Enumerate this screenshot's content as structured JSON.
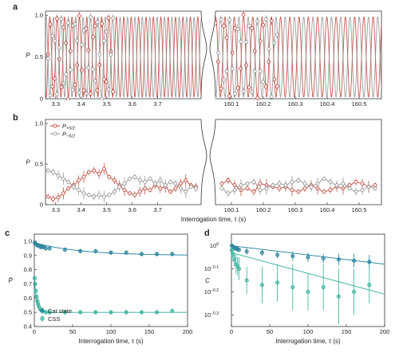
{
  "colors": {
    "red": "#c0392b",
    "gray": "#8c8c8c",
    "dark_teal": "#1f7f9a",
    "light_teal": "#2fb09a"
  },
  "chart_data": [
    {
      "panel": "a",
      "type": "line",
      "ylabel": "P",
      "ylim": [
        0,
        1.05
      ],
      "y_ticks": [
        "0",
        "0.5",
        "1.0"
      ],
      "y_tick_values": [
        0,
        0.5,
        1.0
      ],
      "left_x_ticks": [
        "3.3",
        "3.4",
        "3.5",
        "3.6",
        "3.7"
      ],
      "right_x_ticks": [
        "160.1",
        "160.2",
        "160.3",
        "160.4",
        "160.5"
      ],
      "x_tick_values_left": [
        3.3,
        3.4,
        3.5,
        3.6,
        3.7
      ],
      "x_tick_values_right": [
        160.1,
        160.2,
        160.3,
        160.4,
        160.5
      ],
      "xlim_left": [
        3.26,
        3.87
      ],
      "xlim_right": [
        160.05,
        160.57
      ],
      "segment_break": "axis break between 3.87 s and 160.05 s",
      "series": [
        {
          "color_key": "red",
          "fringe_period_s": 0.029,
          "phase": 0.0,
          "data_left_x": [
            3.27,
            3.53
          ],
          "data_right_x": [
            160.05,
            160.25
          ]
        },
        {
          "color_key": "gray",
          "fringe_period_s": 0.029,
          "phase": 0.5,
          "data_left_x": [
            3.27,
            3.53
          ],
          "data_right_x": [
            160.05,
            160.25
          ]
        }
      ]
    },
    {
      "panel": "b",
      "type": "line",
      "ylabel": "P",
      "xlabel": "Interrogation time, τ (s)",
      "ylim": [
        0,
        1.05
      ],
      "y_ticks": [
        "0",
        "0.5",
        "1.0"
      ],
      "y_tick_values": [
        0,
        0.5,
        1.0
      ],
      "left_x_ticks": [
        "3.3",
        "3.4",
        "3.5",
        "3.6",
        "3.7"
      ],
      "right_x_ticks": [
        "160.1",
        "160.2",
        "160.3",
        "160.4",
        "160.5"
      ],
      "x_tick_values_left": [
        3.3,
        3.4,
        3.5,
        3.6,
        3.7
      ],
      "x_tick_values_right": [
        160.1,
        160.2,
        160.3,
        160.4,
        160.5
      ],
      "xlim_left": [
        3.26,
        3.87
      ],
      "xlim_right": [
        160.05,
        160.57
      ],
      "legend": [
        "P",
        "P"
      ],
      "legend_subs": [
        "+5/2",
        "−5/2"
      ],
      "series": [
        {
          "color_key": "red",
          "left_x": [
            3.27,
            3.29,
            3.31,
            3.33,
            3.35,
            3.37,
            3.39,
            3.41,
            3.43,
            3.45,
            3.47,
            3.49,
            3.51,
            3.53,
            3.55,
            3.57,
            3.59,
            3.61,
            3.63,
            3.65,
            3.67,
            3.69,
            3.71,
            3.73,
            3.75,
            3.77,
            3.79,
            3.81,
            3.83,
            3.85
          ],
          "left_y": [
            0.1,
            0.07,
            0.09,
            0.14,
            0.2,
            0.24,
            0.3,
            0.34,
            0.4,
            0.42,
            0.38,
            0.44,
            0.34,
            0.3,
            0.24,
            0.18,
            0.14,
            0.12,
            0.16,
            0.2,
            0.18,
            0.24,
            0.2,
            0.22,
            0.16,
            0.2,
            0.26,
            0.3,
            0.24,
            0.22
          ],
          "right_x": [
            160.07,
            160.09,
            160.11,
            160.13,
            160.15,
            160.17,
            160.19,
            160.21,
            160.23,
            160.25,
            160.27,
            160.29,
            160.31,
            160.33,
            160.35,
            160.37,
            160.39,
            160.41,
            160.43,
            160.45,
            160.47,
            160.49,
            160.51,
            160.53,
            160.55
          ],
          "right_y": [
            0.26,
            0.3,
            0.24,
            0.18,
            0.2,
            0.16,
            0.26,
            0.24,
            0.22,
            0.2,
            0.22,
            0.18,
            0.16,
            0.2,
            0.24,
            0.2,
            0.16,
            0.18,
            0.22,
            0.2,
            0.24,
            0.28,
            0.26,
            0.22,
            0.24
          ]
        },
        {
          "color_key": "gray",
          "left_x": [
            3.27,
            3.29,
            3.31,
            3.33,
            3.35,
            3.37,
            3.39,
            3.41,
            3.43,
            3.45,
            3.47,
            3.49,
            3.51,
            3.53,
            3.55,
            3.57,
            3.59,
            3.61,
            3.63,
            3.65,
            3.67,
            3.69,
            3.71,
            3.73,
            3.75,
            3.77,
            3.79,
            3.81,
            3.83,
            3.85
          ],
          "left_y": [
            0.42,
            0.4,
            0.36,
            0.32,
            0.28,
            0.22,
            0.18,
            0.14,
            0.12,
            0.1,
            0.12,
            0.1,
            0.12,
            0.16,
            0.22,
            0.26,
            0.32,
            0.34,
            0.3,
            0.28,
            0.32,
            0.26,
            0.3,
            0.24,
            0.28,
            0.26,
            0.2,
            0.16,
            0.22,
            0.2
          ],
          "right_x": [
            160.07,
            160.09,
            160.11,
            160.13,
            160.15,
            160.17,
            160.19,
            160.21,
            160.23,
            160.25,
            160.27,
            160.29,
            160.31,
            160.33,
            160.35,
            160.37,
            160.39,
            160.41,
            160.43,
            160.45,
            160.47,
            160.49,
            160.51,
            160.53,
            160.55
          ],
          "right_y": [
            0.2,
            0.14,
            0.18,
            0.24,
            0.26,
            0.28,
            0.18,
            0.2,
            0.24,
            0.26,
            0.24,
            0.28,
            0.3,
            0.26,
            0.22,
            0.26,
            0.32,
            0.28,
            0.24,
            0.26,
            0.2,
            0.16,
            0.18,
            0.22,
            0.2
          ]
        }
      ]
    },
    {
      "panel": "c",
      "type": "scatter",
      "ylabel": "P̄",
      "xlabel": "Interrogation time, τ (s)",
      "xlim": [
        0,
        200
      ],
      "ylim": [
        0.4,
        1.05
      ],
      "x_ticks": [
        "0",
        "50",
        "100",
        "150",
        "200"
      ],
      "x_tick_values": [
        0,
        50,
        100,
        150,
        200
      ],
      "y_ticks": [
        "0.4",
        "0.5",
        "0.6",
        "0.7",
        "0.8",
        "0.9",
        "1.0"
      ],
      "y_tick_values": [
        0.4,
        0.5,
        0.6,
        0.7,
        0.8,
        0.9,
        1.0
      ],
      "legend_position": "bottom-left",
      "series": [
        {
          "name": "Cat state",
          "color_key": "dark_teal",
          "x": [
            0.5,
            2,
            4,
            6,
            8,
            10,
            12,
            15,
            20,
            40,
            60,
            80,
            100,
            120,
            140,
            160,
            180
          ],
          "y": [
            0.99,
            0.98,
            0.97,
            0.97,
            0.96,
            0.96,
            0.96,
            0.95,
            0.95,
            0.94,
            0.93,
            0.93,
            0.92,
            0.92,
            0.91,
            0.91,
            0.91
          ]
        },
        {
          "name": "CSS",
          "color_key": "light_teal",
          "x": [
            0.5,
            1,
            2,
            3,
            4,
            5,
            6,
            8,
            10,
            15,
            20,
            40,
            60,
            80,
            100,
            120,
            140,
            160,
            180
          ],
          "y": [
            0.74,
            0.7,
            0.65,
            0.61,
            0.58,
            0.56,
            0.54,
            0.52,
            0.51,
            0.5,
            0.5,
            0.5,
            0.5,
            0.5,
            0.5,
            0.5,
            0.5,
            0.5,
            0.51
          ]
        }
      ]
    },
    {
      "panel": "d",
      "type": "scatter",
      "ylabel": "C",
      "xlabel": "Interrogation time, τ (s)",
      "xlim": [
        0,
        200
      ],
      "ylim_log10": [
        -0.35,
        0.05
      ],
      "y_scale": "log",
      "x_ticks": [
        "0",
        "50",
        "100",
        "150",
        "200"
      ],
      "x_tick_values": [
        0,
        50,
        100,
        150,
        200
      ],
      "y_ticks": [
        "10",
        "10",
        "10",
        "10"
      ],
      "y_tick_exps": [
        "0",
        "−0.1",
        "−0.2",
        "−0.3"
      ],
      "y_tick_values_log10": [
        0,
        -0.1,
        -0.2,
        -0.3
      ],
      "series": [
        {
          "name": "Cat state",
          "color_key": "dark_teal",
          "x": [
            0.5,
            2,
            4,
            6,
            8,
            10,
            20,
            40,
            60,
            80,
            100,
            120,
            140,
            160,
            180
          ],
          "log10_y": [
            0.0,
            -0.005,
            -0.01,
            -0.012,
            -0.015,
            -0.018,
            -0.025,
            -0.03,
            -0.04,
            -0.045,
            -0.05,
            -0.055,
            -0.06,
            -0.065,
            -0.07
          ],
          "err_log10": [
            0.01,
            0.01,
            0.01,
            0.01,
            0.01,
            0.01,
            0.015,
            0.015,
            0.015,
            0.02,
            0.02,
            0.02,
            0.025,
            0.03,
            0.03
          ]
        },
        {
          "name": "CSS",
          "color_key": "light_teal",
          "x": [
            0.5,
            2,
            4,
            6,
            8,
            10,
            20,
            40,
            60,
            80,
            100,
            120,
            140,
            160,
            180
          ],
          "log10_y": [
            -0.02,
            -0.04,
            -0.06,
            -0.08,
            -0.09,
            -0.1,
            -0.15,
            -0.17,
            -0.16,
            -0.18,
            -0.2,
            -0.18,
            -0.22,
            -0.2,
            -0.17
          ],
          "err_log10": [
            0.02,
            0.03,
            0.03,
            0.04,
            0.04,
            0.05,
            0.06,
            0.08,
            0.08,
            0.1,
            0.08,
            0.1,
            0.12,
            0.1,
            0.08
          ]
        }
      ]
    }
  ]
}
